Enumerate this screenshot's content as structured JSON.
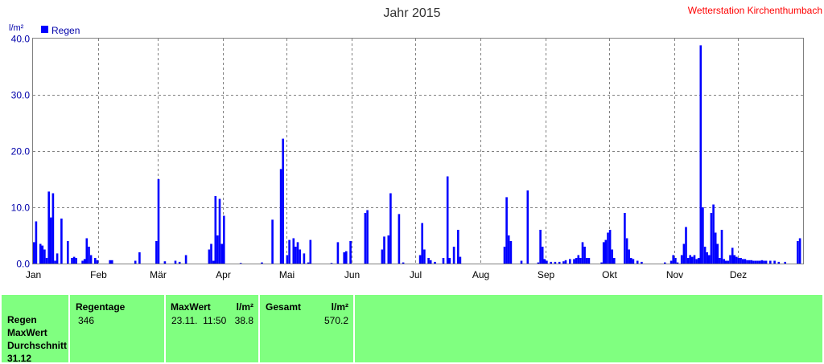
{
  "chart_data": {
    "type": "bar",
    "title": "Jahr 2015",
    "ylabel": "l/m²",
    "ylim": [
      0,
      40
    ],
    "yticks": [
      "0.0",
      "10.0",
      "20.0",
      "30.0",
      "40.0"
    ],
    "grid": true,
    "legend_position": "top-left",
    "series": [
      {
        "name": "Regen",
        "color": "#0000ff",
        "points": [
          [
            1,
            3.8
          ],
          [
            2,
            7.5
          ],
          [
            4,
            3.5
          ],
          [
            5,
            3.2
          ],
          [
            6,
            2.5
          ],
          [
            7,
            1.0
          ],
          [
            8,
            12.8
          ],
          [
            9,
            8.2
          ],
          [
            10,
            12.5
          ],
          [
            11,
            0.5
          ],
          [
            12,
            1.8
          ],
          [
            14,
            8.0
          ],
          [
            17,
            4.0
          ],
          [
            19,
            1.0
          ],
          [
            20,
            1.2
          ],
          [
            21,
            1.0
          ],
          [
            24,
            0.5
          ],
          [
            25,
            0.8
          ],
          [
            26,
            4.5
          ],
          [
            27,
            3.0
          ],
          [
            28,
            1.5
          ],
          [
            30,
            1.0
          ],
          [
            31,
            0.6
          ],
          [
            37,
            0.6
          ],
          [
            38,
            0.6
          ],
          [
            49,
            0.5
          ],
          [
            51,
            2.0
          ],
          [
            59,
            4.0
          ],
          [
            60,
            15.0
          ],
          [
            63,
            0.4
          ],
          [
            68,
            0.5
          ],
          [
            70,
            0.3
          ],
          [
            73,
            1.5
          ],
          [
            84,
            2.5
          ],
          [
            85,
            3.5
          ],
          [
            86,
            0.5
          ],
          [
            87,
            12.0
          ],
          [
            88,
            5.0
          ],
          [
            89,
            11.5
          ],
          [
            90,
            3.5
          ],
          [
            91,
            8.5
          ],
          [
            99,
            0.1
          ],
          [
            109,
            0.2
          ],
          [
            114,
            7.8
          ],
          [
            118,
            16.8
          ],
          [
            119,
            22.2
          ],
          [
            121,
            1.5
          ],
          [
            122,
            4.2
          ],
          [
            124,
            4.5
          ],
          [
            125,
            3.0
          ],
          [
            126,
            3.8
          ],
          [
            127,
            2.5
          ],
          [
            129,
            1.8
          ],
          [
            131,
            0.2
          ],
          [
            132,
            4.2
          ],
          [
            142,
            0.1
          ],
          [
            145,
            3.8
          ],
          [
            148,
            2.0
          ],
          [
            149,
            2.2
          ],
          [
            151,
            4.0
          ],
          [
            158,
            9.0
          ],
          [
            159,
            9.5
          ],
          [
            166,
            2.5
          ],
          [
            167,
            4.8
          ],
          [
            169,
            5.0
          ],
          [
            170,
            12.5
          ],
          [
            174,
            8.8
          ],
          [
            176,
            0.2
          ],
          [
            184,
            1.5
          ],
          [
            185,
            7.2
          ],
          [
            186,
            2.5
          ],
          [
            188,
            1.0
          ],
          [
            189,
            0.6
          ],
          [
            191,
            0.3
          ],
          [
            195,
            1.0
          ],
          [
            197,
            15.5
          ],
          [
            198,
            1.0
          ],
          [
            200,
            3.0
          ],
          [
            202,
            6.0
          ],
          [
            203,
            1.2
          ],
          [
            224,
            3.0
          ],
          [
            225,
            11.8
          ],
          [
            226,
            5.0
          ],
          [
            227,
            4.0
          ],
          [
            232,
            0.5
          ],
          [
            235,
            13.0
          ],
          [
            240,
            0.2
          ],
          [
            241,
            6.0
          ],
          [
            242,
            3.0
          ],
          [
            243,
            0.8
          ],
          [
            244,
            0.5
          ],
          [
            246,
            0.3
          ],
          [
            248,
            0.3
          ],
          [
            250,
            0.3
          ],
          [
            252,
            0.4
          ],
          [
            253,
            0.6
          ],
          [
            255,
            0.8
          ],
          [
            257,
            0.8
          ],
          [
            258,
            1.0
          ],
          [
            259,
            1.5
          ],
          [
            260,
            1.0
          ],
          [
            261,
            3.8
          ],
          [
            262,
            3.0
          ],
          [
            263,
            1.0
          ],
          [
            264,
            1.0
          ],
          [
            270,
            0.2
          ],
          [
            271,
            3.8
          ],
          [
            272,
            4.2
          ],
          [
            273,
            5.5
          ],
          [
            274,
            6.0
          ],
          [
            275,
            2.5
          ],
          [
            276,
            1.0
          ],
          [
            281,
            9.0
          ],
          [
            282,
            4.5
          ],
          [
            283,
            2.5
          ],
          [
            284,
            1.0
          ],
          [
            285,
            0.8
          ],
          [
            287,
            0.5
          ],
          [
            289,
            0.3
          ],
          [
            300,
            0.2
          ],
          [
            303,
            0.5
          ],
          [
            304,
            1.5
          ],
          [
            305,
            1.0
          ],
          [
            306,
            0.2
          ],
          [
            308,
            1.5
          ],
          [
            309,
            3.5
          ],
          [
            310,
            6.5
          ],
          [
            311,
            1.0
          ],
          [
            312,
            1.5
          ],
          [
            313,
            1.2
          ],
          [
            314,
            1.5
          ],
          [
            315,
            0.8
          ],
          [
            316,
            1.0
          ],
          [
            317,
            38.8
          ],
          [
            318,
            10.0
          ],
          [
            319,
            3.0
          ],
          [
            320,
            2.0
          ],
          [
            321,
            1.5
          ],
          [
            322,
            9.0
          ],
          [
            323,
            10.5
          ],
          [
            324,
            5.5
          ],
          [
            325,
            3.5
          ],
          [
            326,
            1.0
          ],
          [
            327,
            6.0
          ],
          [
            328,
            0.8
          ],
          [
            329,
            0.5
          ],
          [
            330,
            0.5
          ],
          [
            331,
            1.5
          ],
          [
            332,
            2.8
          ],
          [
            333,
            1.5
          ],
          [
            334,
            1.2
          ],
          [
            335,
            1.0
          ],
          [
            336,
            1.0
          ],
          [
            337,
            0.8
          ],
          [
            338,
            0.8
          ],
          [
            339,
            0.6
          ],
          [
            340,
            0.6
          ],
          [
            341,
            0.6
          ],
          [
            342,
            0.5
          ],
          [
            343,
            0.5
          ],
          [
            344,
            0.5
          ],
          [
            345,
            0.5
          ],
          [
            346,
            0.6
          ],
          [
            347,
            0.5
          ],
          [
            348,
            0.5
          ],
          [
            350,
            0.5
          ],
          [
            352,
            0.5
          ],
          [
            354,
            0.3
          ],
          [
            357,
            0.3
          ],
          [
            363,
            4.0
          ],
          [
            364,
            4.5
          ]
        ]
      }
    ],
    "x_domain_days": 365,
    "month_labels": [
      "Jan",
      "Feb",
      "Mär",
      "Apr",
      "Mai",
      "Jun",
      "Jul",
      "Aug",
      "Sep",
      "Okt",
      "Nov",
      "Dez"
    ],
    "month_start_days": [
      0,
      31,
      59,
      90,
      120,
      151,
      181,
      212,
      243,
      273,
      304,
      334
    ]
  },
  "header": {
    "title": "Jahr 2015",
    "station": "Wetterstation Kirchenthumbach",
    "unit": "l/m²",
    "legend_label": "Regen"
  },
  "stats": {
    "rows": [
      "Regen",
      "MaxWert",
      "Durchschnitt",
      "31.12"
    ],
    "regentage_header": "Regentage",
    "regentage_value": "346",
    "maxwert_header": "MaxWert",
    "maxwert_unit": "l/m²",
    "maxwert_date": "23.11.  11:50",
    "maxwert_value": "38.8",
    "gesamt_header": "Gesamt",
    "gesamt_unit": "l/m²",
    "gesamt_value": "570.2"
  },
  "colors": {
    "bar": "#0000ff",
    "panel": "#80ff80",
    "station_text": "#ff0000",
    "axis_text": "#0000aa"
  }
}
